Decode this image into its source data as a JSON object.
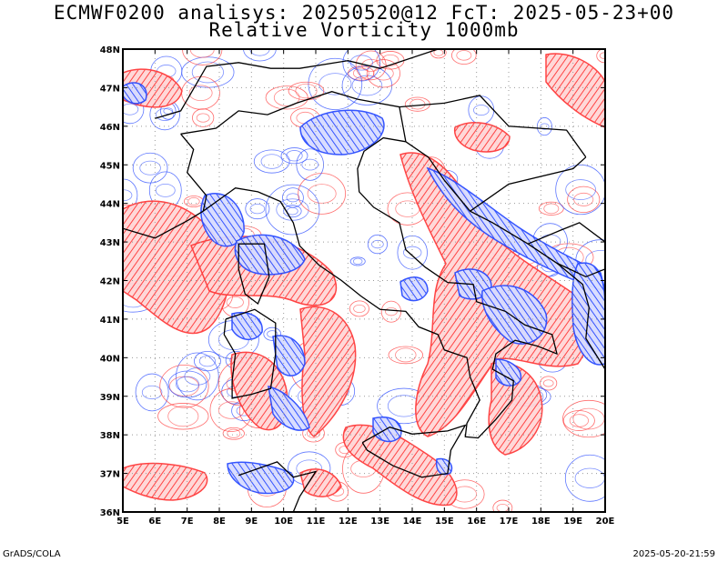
{
  "title_line1": "ECMWF0200 analisys: 20250520@12 FcT: 2025-05-23+00",
  "title_line2": "Relative Vorticity 1000mb",
  "footer_left": "GrADS/COLA",
  "footer_right": "2025-05-20-21:59",
  "colors": {
    "positive": "#ff3b3b",
    "negative": "#2a4bff",
    "coast": "#000000",
    "grid": "#999999"
  },
  "map": {
    "lon_min": 5,
    "lon_max": 20,
    "lat_min": 36,
    "lat_max": 48,
    "lat_labels": [
      "48N",
      "47N",
      "46N",
      "45N",
      "44N",
      "43N",
      "42N",
      "41N",
      "40N",
      "39N",
      "38N",
      "37N",
      "36N"
    ],
    "lon_labels": [
      "5E",
      "6E",
      "7E",
      "8E",
      "9E",
      "10E",
      "11E",
      "12E",
      "13E",
      "14E",
      "15E",
      "16E",
      "17E",
      "18E",
      "19E",
      "20E"
    ]
  }
}
